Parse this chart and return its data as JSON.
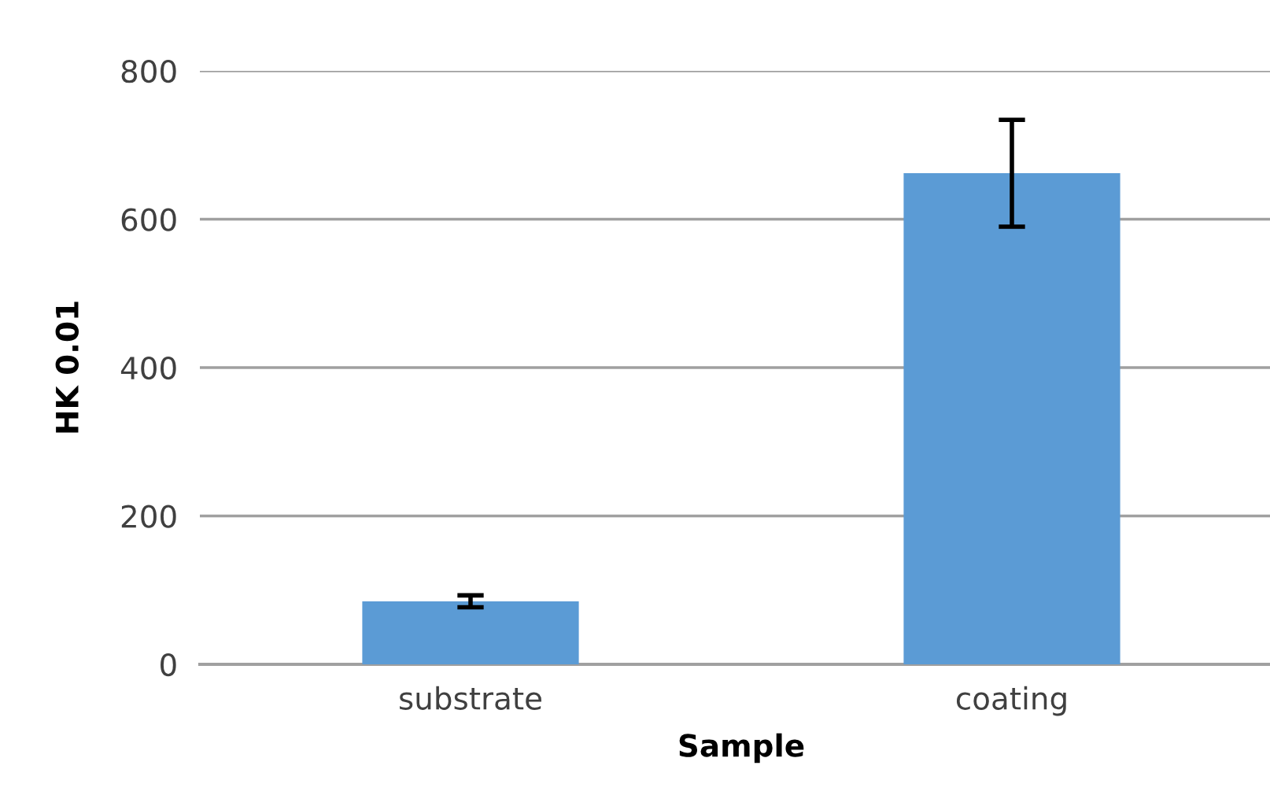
{
  "chart_data": {
    "type": "bar",
    "xlabel": "Sample",
    "ylabel": "HK 0.01",
    "categories": [
      "substrate",
      "coating"
    ],
    "values": [
      85,
      662
    ],
    "errors": [
      8,
      72
    ],
    "color": "#5b9bd5",
    "ylim": [
      0,
      800
    ],
    "yticks": [
      0,
      200,
      400,
      600,
      800
    ],
    "grid": "y"
  }
}
